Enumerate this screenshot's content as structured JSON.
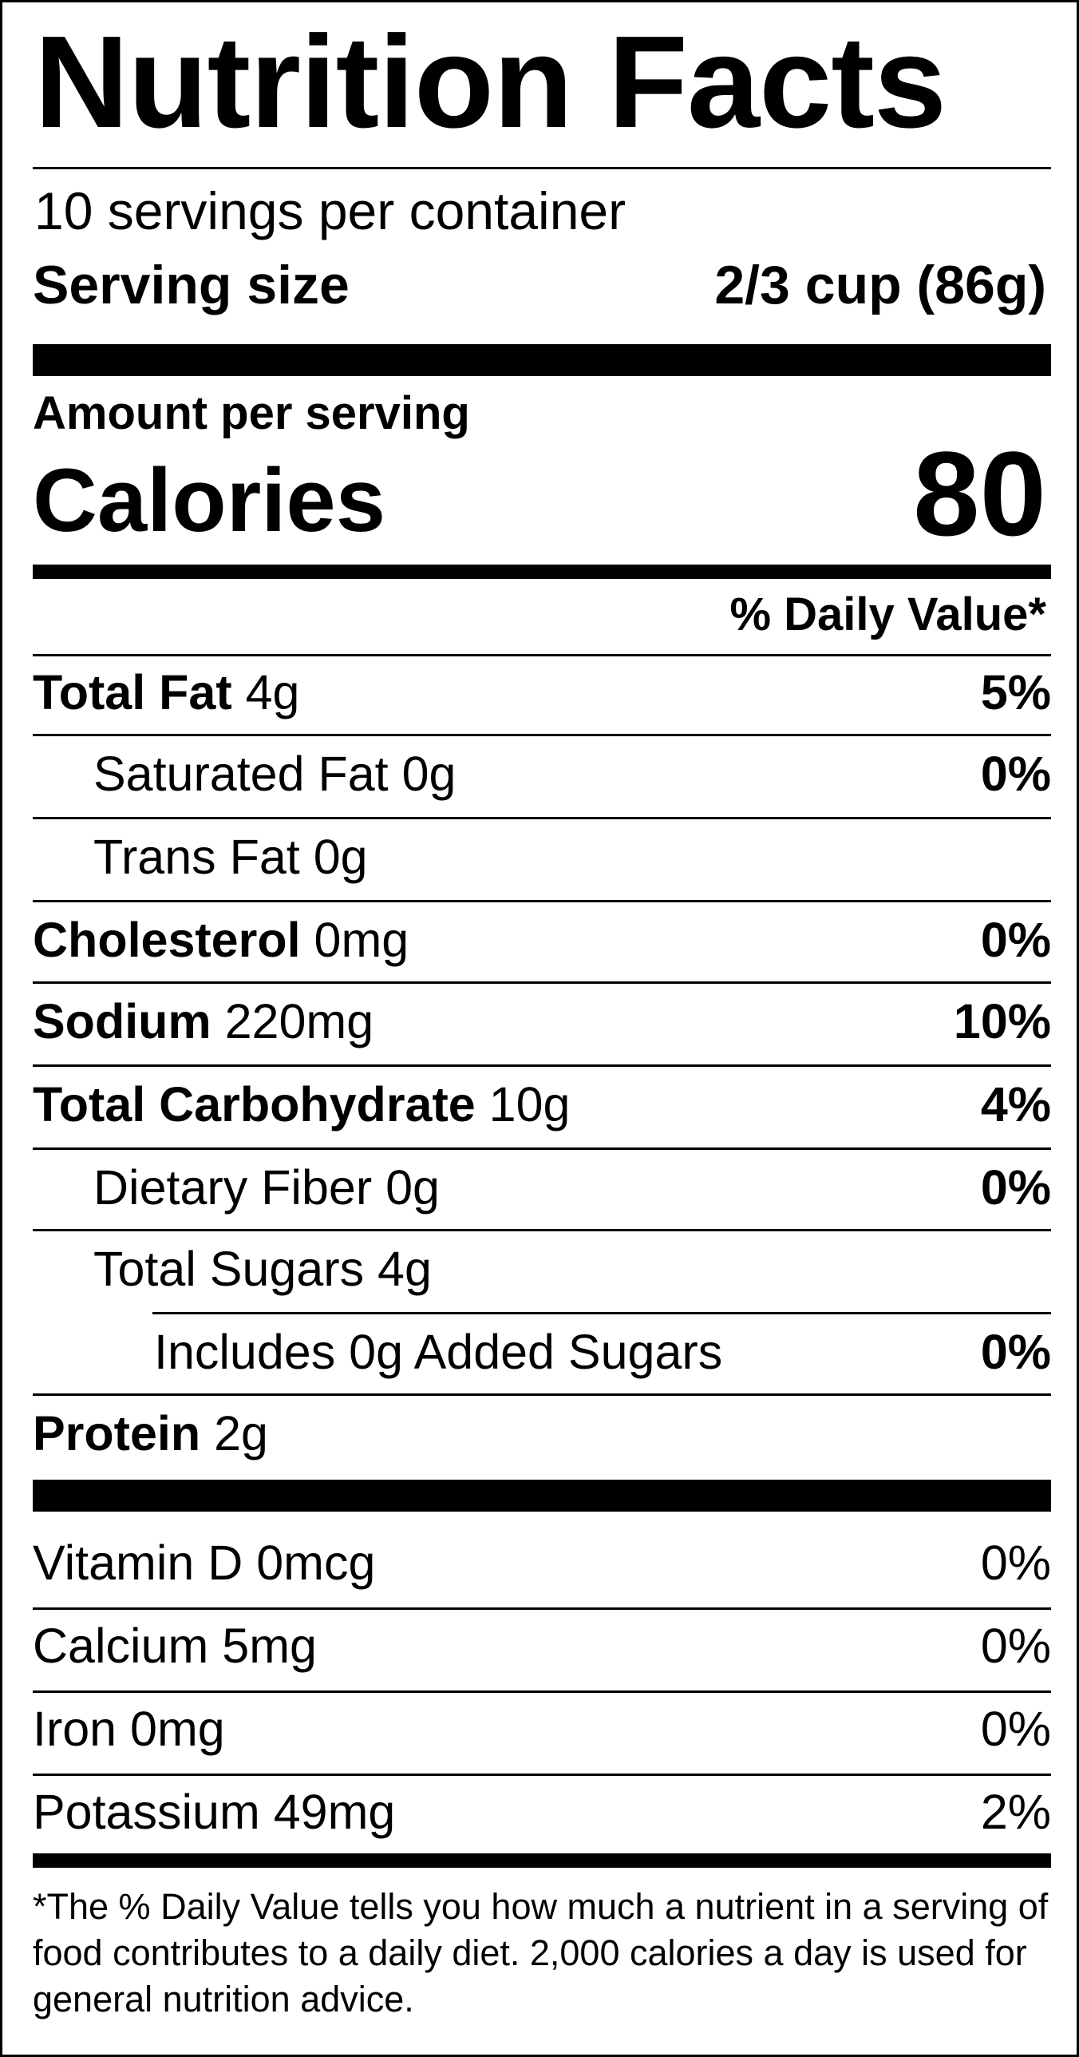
{
  "title": "Nutrition Facts",
  "servings_per_container": "10 servings per container",
  "serving_size": {
    "label": "Serving size",
    "value": "2/3 cup (86g)"
  },
  "amount_per_serving": "Amount per serving",
  "calories": {
    "label": "Calories",
    "value": "80"
  },
  "daily_value_header": "% Daily Value*",
  "nutrients": [
    {
      "name": "Total Fat",
      "amount": "4g",
      "dv": "5%"
    },
    {
      "name": "Saturated Fat",
      "amount": "0g",
      "dv": "0%"
    },
    {
      "name": "Trans Fat",
      "amount": "0g",
      "dv": ""
    },
    {
      "name": "Cholesterol",
      "amount": "0mg",
      "dv": "0%"
    },
    {
      "name": "Sodium",
      "amount": "220mg",
      "dv": "10%"
    },
    {
      "name": "Total Carbohydrate",
      "amount": "10g",
      "dv": "4%"
    },
    {
      "name": "Dietary Fiber",
      "amount": "0g",
      "dv": "0%"
    },
    {
      "name": "Total Sugars",
      "amount": "4g",
      "dv": ""
    },
    {
      "name": "Includes 0g Added Sugars",
      "amount": "",
      "dv": "0%"
    },
    {
      "name": "Protein",
      "amount": "2g",
      "dv": ""
    }
  ],
  "vitamins": [
    {
      "text": "Vitamin D 0mcg",
      "dv": "0%"
    },
    {
      "text": "Calcium 5mg",
      "dv": "0%"
    },
    {
      "text": "Iron 0mg",
      "dv": "0%"
    },
    {
      "text": "Potassium 49mg",
      "dv": "2%"
    }
  ],
  "footnote": "*The % Daily Value tells you how much a nutrient in a serving of food contributes to a daily diet. 2,000 calories a day is used for general nutrition advice."
}
